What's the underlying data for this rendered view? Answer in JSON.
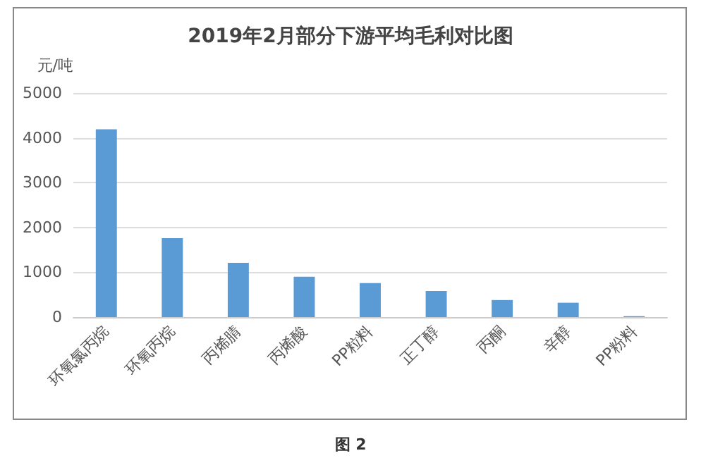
{
  "chart_data": {
    "type": "bar",
    "title": "2019年2月部分下游平均毛利对比图",
    "ylabel": "元/吨",
    "categories": [
      "环氧氯丙烷",
      "环氧丙烷",
      "丙烯腈",
      "丙烯酸",
      "PP粒料",
      "正丁醇",
      "丙酮",
      "辛醇",
      "PP粉料"
    ],
    "values": [
      4190,
      1760,
      1210,
      900,
      760,
      580,
      380,
      320,
      20
    ],
    "color": "#5b9bd5",
    "ylim": [
      0,
      5000
    ],
    "yticks": [
      0,
      1000,
      2000,
      3000,
      4000,
      5000
    ],
    "grid": "y",
    "annotations": [
      "图 2"
    ]
  }
}
